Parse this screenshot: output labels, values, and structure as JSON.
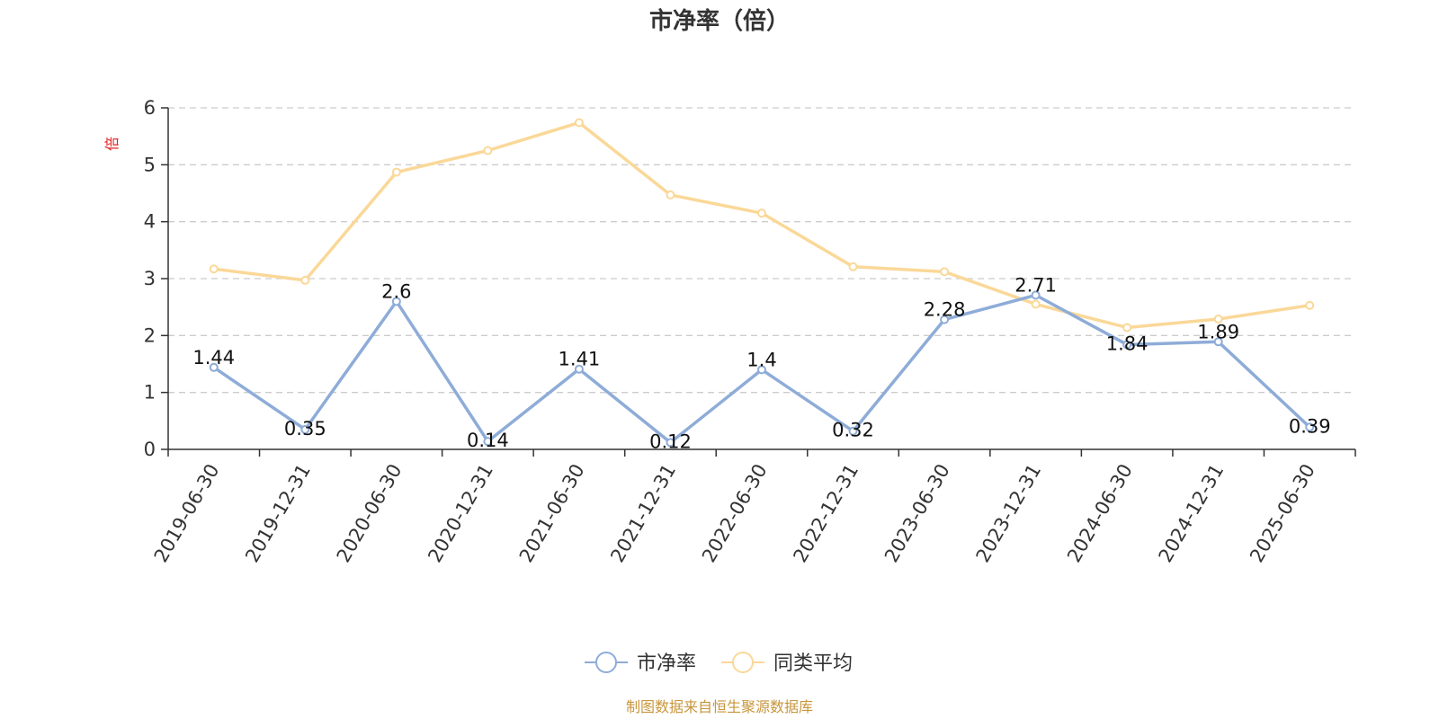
{
  "chart_data": {
    "type": "line",
    "title": "市净率（倍）",
    "ylabel": "倍",
    "xlabel": "",
    "ylim": [
      0,
      6
    ],
    "yticks": [
      0,
      1,
      2,
      3,
      4,
      5,
      6
    ],
    "grid": true,
    "legend_position": "bottom",
    "categories": [
      "2019-06-30",
      "2019-12-31",
      "2020-06-30",
      "2020-12-31",
      "2021-06-30",
      "2021-12-31",
      "2022-06-30",
      "2022-12-31",
      "2023-06-30",
      "2023-12-31",
      "2024-06-30",
      "2024-12-31",
      "2025-06-30"
    ],
    "series": [
      {
        "name": "市净率",
        "color": "#8eacd8",
        "show_labels": true,
        "values": [
          1.44,
          0.35,
          2.6,
          0.14,
          1.41,
          0.12,
          1.4,
          0.32,
          2.28,
          2.71,
          1.84,
          1.89,
          0.39
        ]
      },
      {
        "name": "同类平均",
        "color": "#fad898",
        "show_labels": false,
        "values": [
          3.17,
          2.97,
          4.87,
          5.25,
          5.74,
          4.47,
          4.15,
          3.21,
          3.12,
          2.55,
          2.14,
          2.29,
          2.53
        ]
      }
    ],
    "source_note": "制图数据来自恒生聚源数据库"
  },
  "colors": {
    "axis": "#333333",
    "grid": "#cccccc",
    "unit_label": "#e02020",
    "source_note": "#c8963c"
  }
}
